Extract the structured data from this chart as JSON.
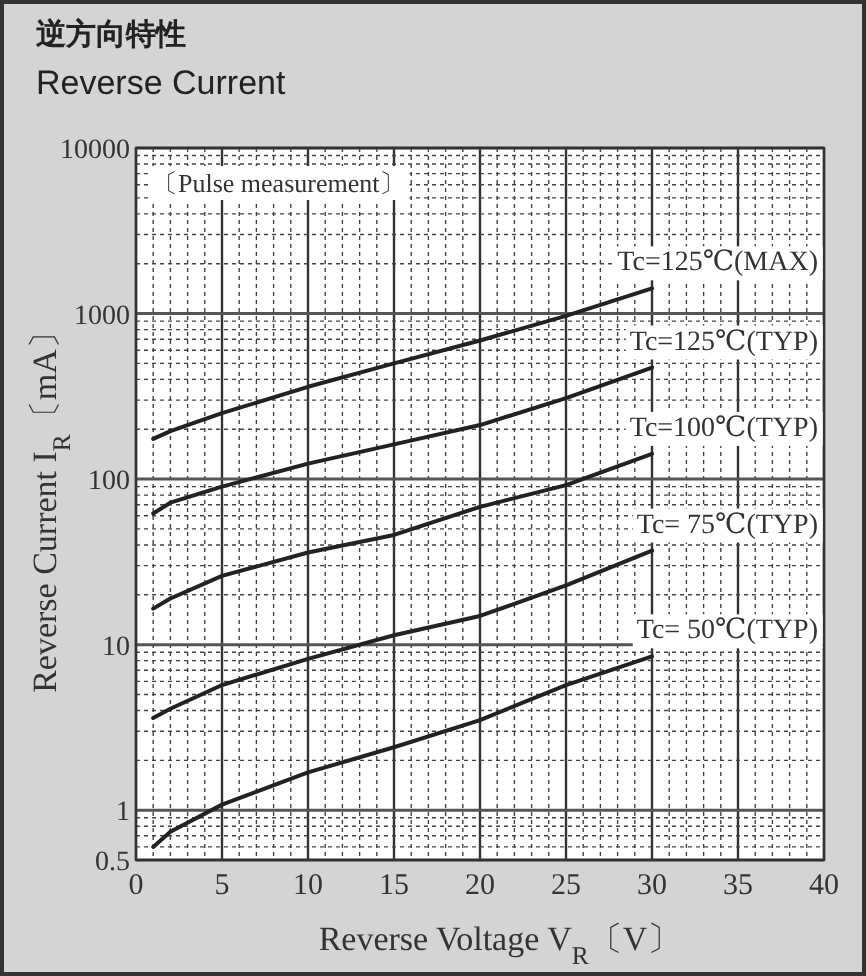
{
  "chart_data": {
    "type": "line",
    "title": "逆方向特性",
    "subtitle": "Reverse Current",
    "xlabel": "Reverse Voltage V$_{R}$〔V〕",
    "ylabel": "Reverse Current I$_{R}$〔mA〕",
    "annotations": [
      "〔Pulse measurement〕"
    ],
    "log": "y",
    "grid": true,
    "xlim": [
      0,
      40
    ],
    "xticks": [
      0,
      5,
      10,
      15,
      20,
      25,
      30,
      35,
      40
    ],
    "ylim": [
      0.5,
      10000
    ],
    "yticks": [
      0.5,
      1,
      10,
      100,
      1000,
      10000
    ],
    "x": [
      1,
      2,
      5,
      10,
      15,
      20,
      25,
      30
    ],
    "series": [
      {
        "name": "Tc=125℃(MAX)",
        "color": "#222222",
        "values": [
          175,
          195,
          250,
          361,
          500,
          687,
          968,
          1420
        ]
      },
      {
        "name": "Tc=125℃(TYP)",
        "color": "#222222",
        "values": [
          62,
          72,
          90,
          124,
          162,
          212,
          308,
          472
        ]
      },
      {
        "name": "Tc=100℃(TYP)",
        "color": "#222222",
        "values": [
          16.5,
          19,
          26,
          36,
          46,
          68,
          92,
          142
        ]
      },
      {
        "name": "Tc= 75℃(TYP)",
        "color": "#222222",
        "values": [
          3.6,
          4.1,
          5.7,
          8.2,
          11.4,
          14.9,
          22.8,
          37
        ]
      },
      {
        "name": "Tc= 50℃(TYP)",
        "color": "#222222",
        "values": [
          0.6,
          0.74,
          1.08,
          1.69,
          2.4,
          3.5,
          5.7,
          8.5
        ]
      }
    ]
  }
}
